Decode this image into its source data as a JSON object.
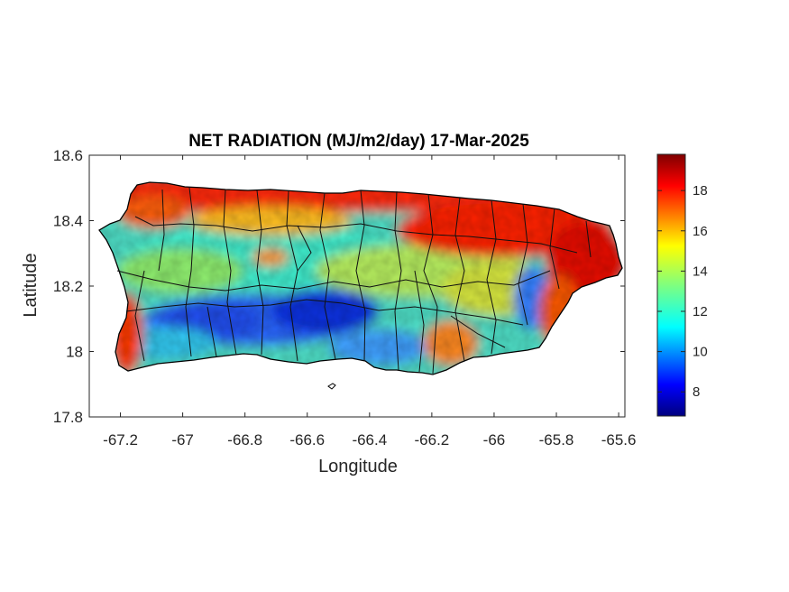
{
  "title": "NET RADIATION (MJ/m2/day) 17-Mar-2025",
  "xlabel": "Longitude",
  "ylabel": "Latitude",
  "x_ticks": [
    "-67.2",
    "-67",
    "-66.8",
    "-66.6",
    "-66.4",
    "-66.2",
    "-66",
    "-65.8",
    "-65.6"
  ],
  "y_ticks": [
    "18.6",
    "18.4",
    "18.2",
    "18",
    "17.8"
  ],
  "colorbar_ticks": [
    "18",
    "16",
    "14",
    "12",
    "10",
    "8"
  ],
  "colors": {
    "colormap": "jet",
    "axis": "#262626",
    "boundary": "#000000"
  },
  "map": {
    "region": "Puerto Rico",
    "xlim": [
      -67.3,
      -65.58
    ],
    "ylim": [
      17.8,
      18.6
    ],
    "colorbar_range": [
      6.8,
      19.8
    ],
    "field_pattern": "high (red, ~18-19) along north coast and east end and western tip; low (blue, ~8-11) across south-central interior; mid (cyan-yellow, ~12-15) elsewhere"
  }
}
